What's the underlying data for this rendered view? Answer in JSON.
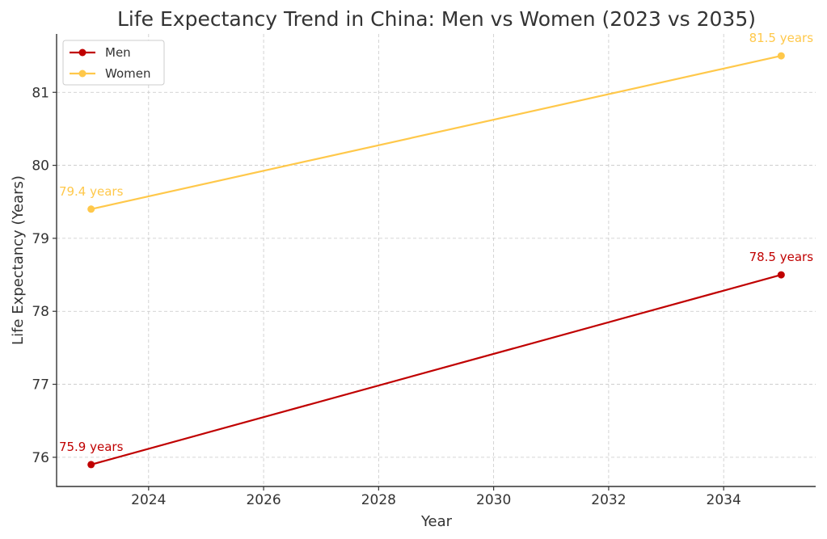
{
  "chart_data": {
    "type": "line",
    "title": "Life Expectancy Trend in China: Men vs Women (2023 vs 2035)",
    "xlabel": "Year",
    "ylabel": "Life Expectancy (Years)",
    "xlim": [
      2022.4,
      2035.6
    ],
    "ylim": [
      75.6,
      81.8
    ],
    "xticks": [
      2024,
      2026,
      2028,
      2030,
      2032,
      2034
    ],
    "yticks": [
      76,
      77,
      78,
      79,
      80,
      81
    ],
    "grid": true,
    "legend_position": "top-left",
    "series": [
      {
        "name": "Men",
        "color": "#c00000",
        "x": [
          2023,
          2035
        ],
        "values": [
          75.9,
          78.5
        ],
        "labels": [
          "75.9 years",
          "78.5 years"
        ]
      },
      {
        "name": "Women",
        "color": "#ffc84a",
        "x": [
          2023,
          2035
        ],
        "values": [
          79.4,
          81.5
        ],
        "labels": [
          "79.4 years",
          "81.5 years"
        ]
      }
    ]
  }
}
